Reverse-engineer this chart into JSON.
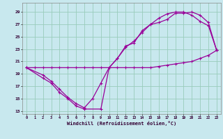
{
  "xlabel": "Windchill (Refroidissement éolien,°C)",
  "background_color": "#c8e8ee",
  "grid_color": "#99ccbb",
  "line_color": "#990099",
  "xlim": [
    -0.5,
    23.5
  ],
  "ylim": [
    12.5,
    30.5
  ],
  "xticks": [
    0,
    1,
    2,
    3,
    4,
    5,
    6,
    7,
    8,
    9,
    10,
    11,
    12,
    13,
    14,
    15,
    16,
    17,
    18,
    19,
    20,
    21,
    22,
    23
  ],
  "yticks": [
    13,
    15,
    17,
    19,
    21,
    23,
    25,
    27,
    29
  ],
  "line1_x": [
    0,
    1,
    2,
    3,
    4,
    5,
    6,
    7,
    8,
    9,
    10,
    11,
    12,
    13,
    14,
    15,
    16,
    17,
    18,
    19,
    20,
    21,
    22,
    23
  ],
  "line1_y": [
    20.0,
    20.0,
    20.0,
    20.0,
    20.0,
    20.0,
    20.0,
    20.0,
    20.0,
    20.0,
    20.0,
    20.0,
    20.0,
    20.0,
    20.0,
    20.0,
    20.2,
    20.4,
    20.6,
    20.8,
    21.0,
    21.5,
    22.0,
    22.8
  ],
  "line2_x": [
    0,
    2,
    3,
    4,
    5,
    6,
    7,
    9,
    10,
    11,
    12,
    13,
    14,
    15,
    16,
    17,
    18,
    19,
    20,
    21,
    22,
    23
  ],
  "line2_y": [
    20.0,
    18.3,
    17.5,
    16.0,
    15.0,
    13.8,
    13.3,
    13.3,
    20.0,
    21.5,
    23.5,
    24.0,
    26.0,
    27.0,
    27.3,
    27.8,
    28.8,
    28.8,
    29.0,
    28.5,
    27.3,
    22.8
  ],
  "line3_x": [
    0,
    2,
    3,
    4,
    5,
    6,
    7,
    8,
    9,
    10,
    11,
    12,
    13,
    14,
    15,
    16,
    17,
    18,
    19,
    20,
    21,
    22,
    23
  ],
  "line3_y": [
    20.0,
    18.8,
    17.8,
    16.5,
    15.2,
    14.2,
    13.5,
    15.0,
    17.5,
    20.0,
    21.5,
    23.3,
    24.3,
    25.7,
    27.0,
    28.0,
    28.7,
    29.0,
    29.0,
    28.5,
    27.5,
    26.8,
    22.8
  ]
}
